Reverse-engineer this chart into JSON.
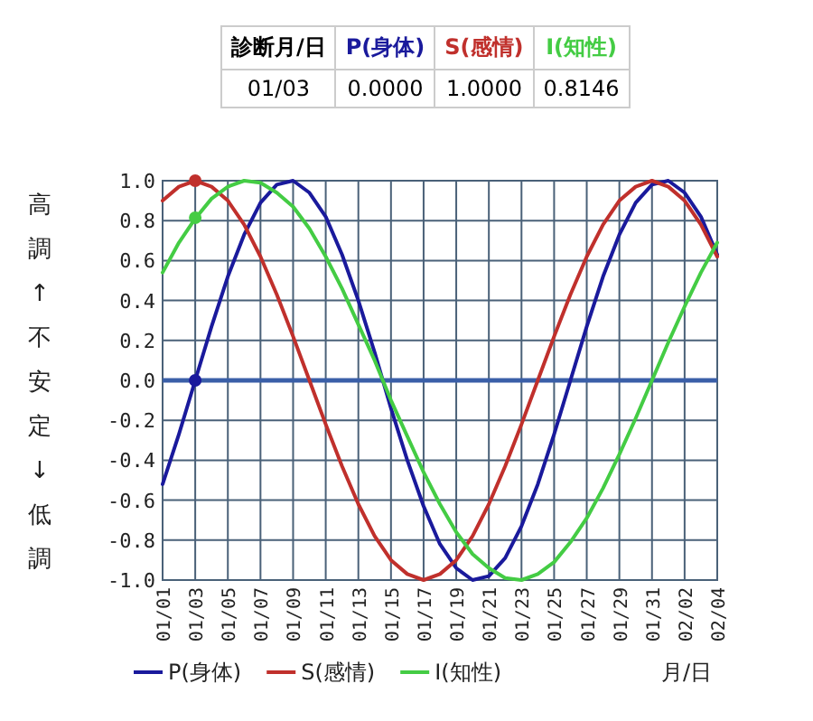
{
  "chart_data": {
    "type": "line",
    "ylabel": "高調↑不安定↓低調",
    "xlabel": "月/日",
    "annotations": [
      "診断月/日",
      "P(身体)",
      "S(感情)",
      "I(知性)",
      "01/03",
      "0.0000",
      "1.0000",
      "0.8146"
    ],
    "categories": [
      "01/01",
      null,
      "01/03",
      null,
      "01/05",
      null,
      "01/07",
      null,
      "01/09",
      null,
      "01/11",
      null,
      "01/13",
      null,
      "01/15",
      null,
      "01/17",
      null,
      "01/19",
      null,
      "01/21",
      null,
      "01/23",
      null,
      "01/25",
      null,
      "01/27",
      null,
      "01/29",
      null,
      "01/31",
      null,
      "02/02",
      null,
      "02/04"
    ],
    "series": [
      {
        "name": "P(身体)",
        "color": "#1a1a9c",
        "values": [
          -0.52,
          -0.27,
          0,
          0.27,
          0.52,
          0.73,
          0.89,
          0.98,
          1.0,
          0.94,
          0.82,
          0.63,
          0.4,
          0.14,
          -0.14,
          -0.4,
          -0.63,
          -0.82,
          -0.94,
          -1.0,
          -0.98,
          -0.89,
          -0.73,
          -0.52,
          -0.27,
          0,
          0.27,
          0.52,
          0.73,
          0.89,
          0.98,
          1.0,
          0.94,
          0.82,
          0.63
        ]
      },
      {
        "name": "S(感情)",
        "color": "#c0302c",
        "values": [
          0.9,
          0.97,
          1,
          0.97,
          0.9,
          0.78,
          0.62,
          0.43,
          0.22,
          0,
          -0.22,
          -0.43,
          -0.62,
          -0.78,
          -0.9,
          -0.97,
          -1,
          -0.97,
          -0.9,
          -0.78,
          -0.62,
          -0.43,
          -0.22,
          0,
          0.22,
          0.43,
          0.62,
          0.78,
          0.9,
          0.97,
          1,
          0.97,
          0.9,
          0.78,
          0.62
        ]
      },
      {
        "name": "I(知性)",
        "color": "#44cc44",
        "values": [
          0.54,
          0.69,
          0.81,
          0.91,
          0.97,
          1.0,
          0.99,
          0.94,
          0.87,
          0.76,
          0.62,
          0.46,
          0.28,
          0.1,
          -0.1,
          -0.28,
          -0.46,
          -0.62,
          -0.76,
          -0.87,
          -0.94,
          -0.99,
          -1.0,
          -0.97,
          -0.91,
          -0.81,
          -0.69,
          -0.54,
          -0.37,
          -0.19,
          0,
          0.19,
          0.37,
          0.54,
          0.69
        ]
      },
      {
        "type": "scatter",
        "color": "#1a1a9c",
        "x": [
          "01/03"
        ],
        "values": [
          0
        ]
      },
      {
        "type": "scatter",
        "color": "#c0302c",
        "x": [
          "01/03"
        ],
        "values": [
          1
        ]
      },
      {
        "type": "scatter",
        "color": "#44cc44",
        "x": [
          "01/03"
        ],
        "values": [
          0.8146
        ]
      }
    ],
    "ylim": [
      -1,
      1
    ],
    "yticks": [
      {
        "value": 1,
        "label": "1.0"
      },
      {
        "value": 0.8,
        "label": "0.8"
      },
      {
        "value": 0.6,
        "label": "0.6"
      },
      {
        "value": 0.4,
        "label": "0.4"
      },
      {
        "value": 0.2,
        "label": "0.2"
      },
      {
        "value": 0,
        "label": "0.0"
      },
      {
        "value": -0.2,
        "label": "-0.2"
      },
      {
        "value": -0.4,
        "label": "-0.4"
      },
      {
        "value": -0.6,
        "label": "-0.6"
      },
      {
        "value": -0.8,
        "label": "-0.8"
      },
      {
        "value": -1,
        "label": "-1.0"
      }
    ],
    "ref_lines": [
      {
        "axis": "y",
        "value": 0,
        "color": "#3a5fa8"
      }
    ],
    "grid": true,
    "legend": "bottom"
  }
}
